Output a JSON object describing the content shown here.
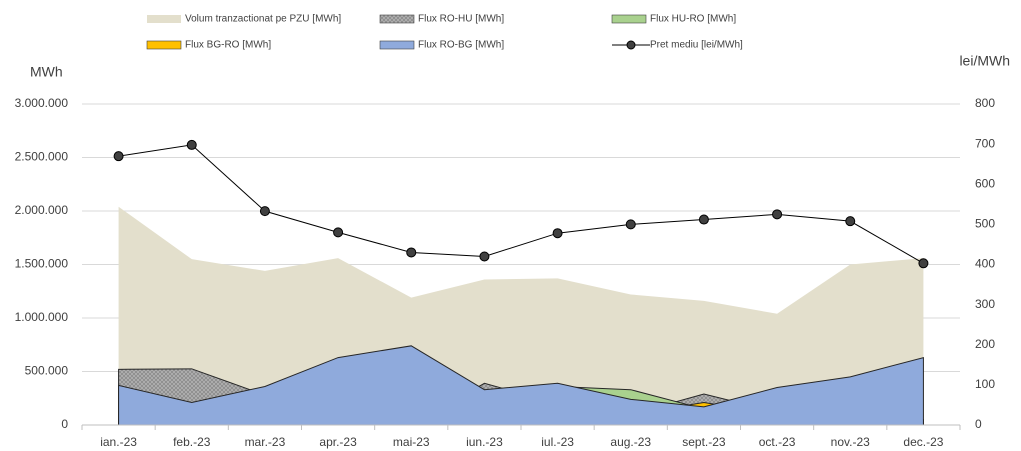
{
  "chart_data": {
    "type": "area",
    "y_label": "MWh",
    "y2_label": "lei/MWh",
    "categories": [
      "ian.-23",
      "feb.-23",
      "mar.-23",
      "apr.-23",
      "mai-23",
      "iun.-23",
      "iul.-23",
      "aug.-23",
      "sept.-23",
      "oct.-23",
      "nov.-23",
      "dec.-23"
    ],
    "series": [
      {
        "name": "Volum tranzactionat pe PZU [MWh]",
        "color": "#e3dfcc",
        "values": [
          2040000,
          1550000,
          1440000,
          1560000,
          1190000,
          1360000,
          1370000,
          1220000,
          1160000,
          1040000,
          1500000,
          1560000
        ]
      },
      {
        "name": "Flux RO-HU [MWh]",
        "color": "#a6a6a6",
        "values": [
          520000,
          525000,
          280000,
          0,
          0,
          390000,
          200000,
          100000,
          290000,
          120000,
          0,
          0
        ]
      },
      {
        "name": "Flux HU-RO [MWh]",
        "color": "#a9d18e",
        "values": [
          0,
          0,
          0,
          0,
          0,
          0,
          360000,
          330000,
          150000,
          0,
          0,
          0
        ]
      },
      {
        "name": "Flux BG-RO [MWh]",
        "color": "#ffc000",
        "values": [
          50000,
          50000,
          50000,
          50000,
          50000,
          50000,
          100000,
          100000,
          210000,
          100000,
          50000,
          50000
        ]
      },
      {
        "name": "Flux RO-BG [MWh]",
        "color": "#8faadc",
        "values": [
          370000,
          210000,
          360000,
          630000,
          740000,
          330000,
          390000,
          240000,
          170000,
          350000,
          450000,
          630000
        ]
      },
      {
        "name": "Pret mediu [lei/MWh]",
        "color": "#000000",
        "type": "line",
        "axis": "y2",
        "values": [
          670,
          698,
          533,
          480,
          430,
          420,
          478,
          500,
          512,
          525,
          508,
          403
        ]
      }
    ],
    "ylim": [
      0,
      3000000
    ],
    "yticks": [
      0,
      {
        "value": 500000,
        "label": "500.000"
      },
      {
        "value": 1000000,
        "label": "1.000.000"
      },
      {
        "value": 1500000,
        "label": "1.500.000"
      },
      {
        "value": 2000000,
        "label": "2.000.000"
      },
      {
        "value": 2500000,
        "label": "2.500.000"
      },
      {
        "value": 3000000,
        "label": "3.000.000"
      }
    ],
    "y2lim": [
      0,
      800
    ],
    "y2ticks": [
      0,
      100,
      200,
      300,
      400,
      500,
      600,
      700,
      800
    ],
    "grid": true,
    "legend": "top"
  }
}
